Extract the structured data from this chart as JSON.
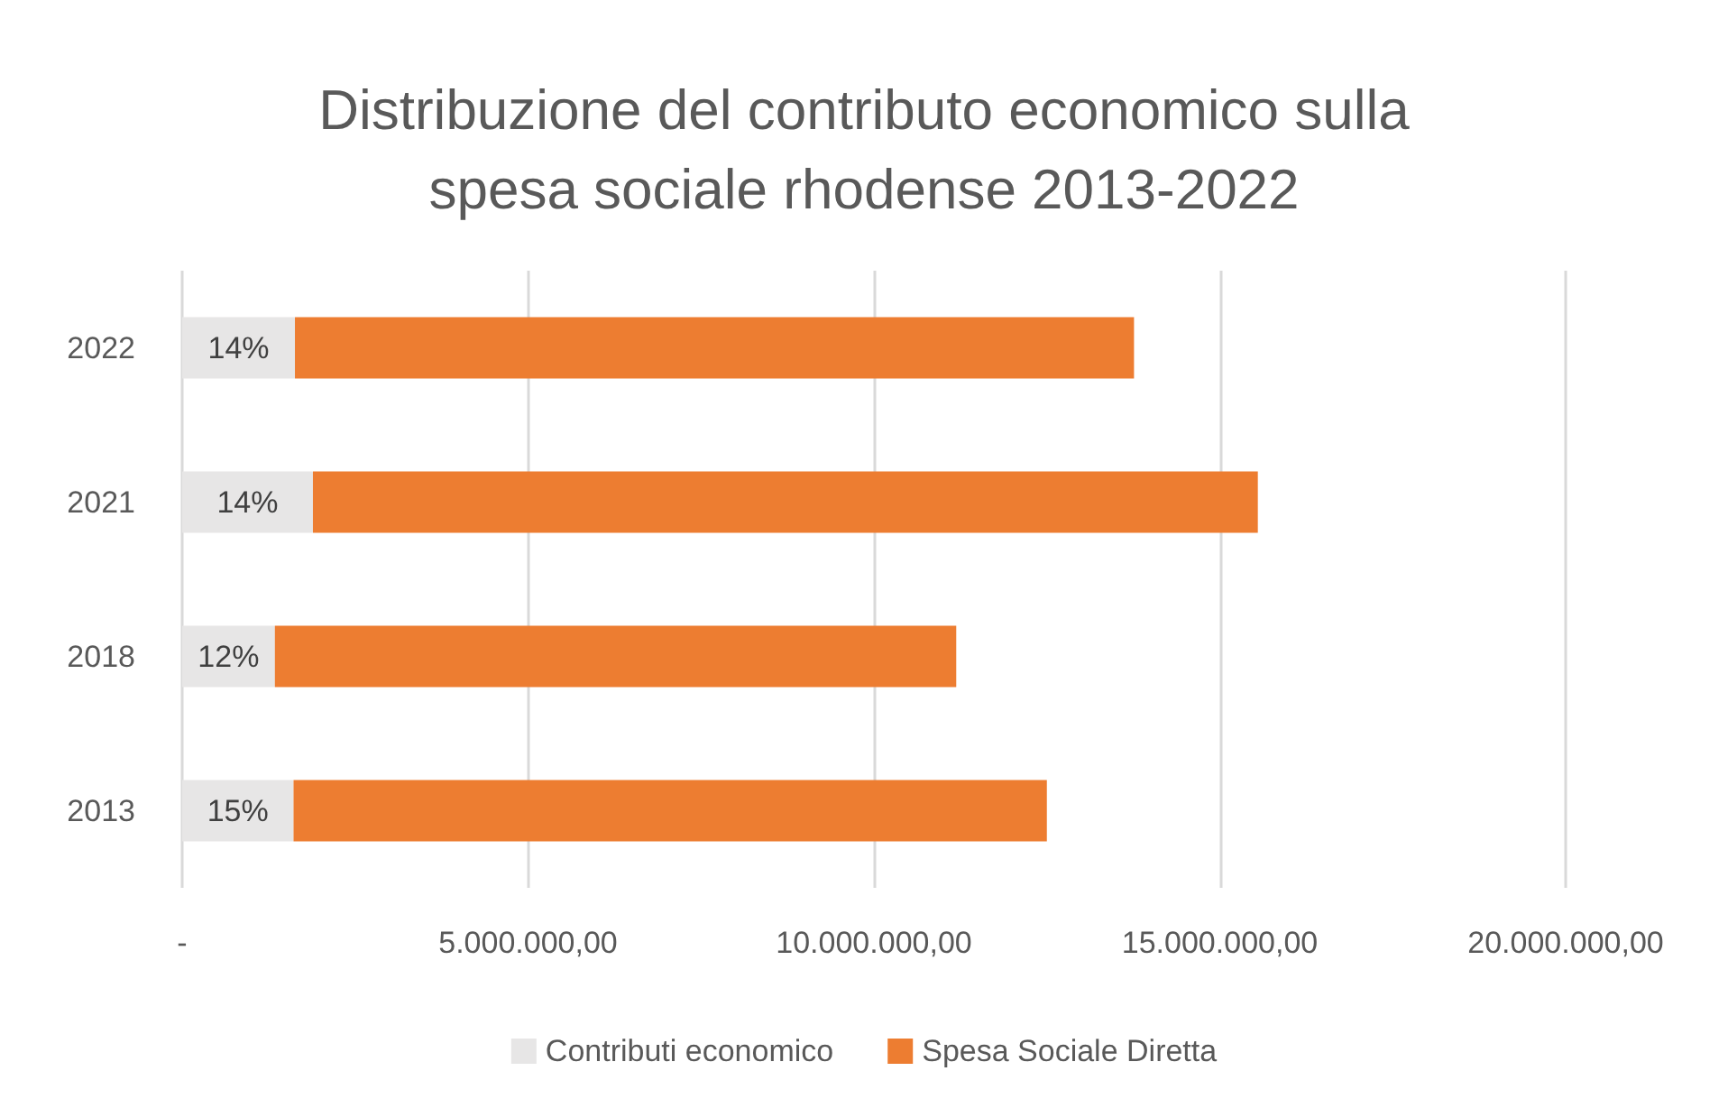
{
  "chart_data": {
    "type": "bar",
    "title": "Distribuzione del contributo economico sulla\nspesa sociale rhodense 2013-2022",
    "orientation": "horizontal",
    "stacked": true,
    "categories": [
      "2022",
      "2021",
      "2018",
      "2013"
    ],
    "series": [
      {
        "name": "Contributi economico",
        "color": "#e7e6e6",
        "values": [
          1630000,
          1890000,
          1340000,
          1610000
        ]
      },
      {
        "name": "Spesa Sociale Diretta",
        "color": "#ed7d31",
        "values": [
          12130000,
          13660000,
          9850000,
          10890000
        ]
      }
    ],
    "xlim": [
      0,
      20000000
    ],
    "xticks": [
      {
        "value": 0,
        "label": "-"
      },
      {
        "value": 5000000,
        "label": "5.000.000,00"
      },
      {
        "value": 10000000,
        "label": "10.000.000,00"
      },
      {
        "value": 15000000,
        "label": "15.000.000,00"
      },
      {
        "value": 20000000,
        "label": "20.000.000,00"
      }
    ],
    "annotations": [
      "14%",
      "14%",
      "12%",
      "15%"
    ],
    "grid": "x",
    "legend": "bottom"
  }
}
